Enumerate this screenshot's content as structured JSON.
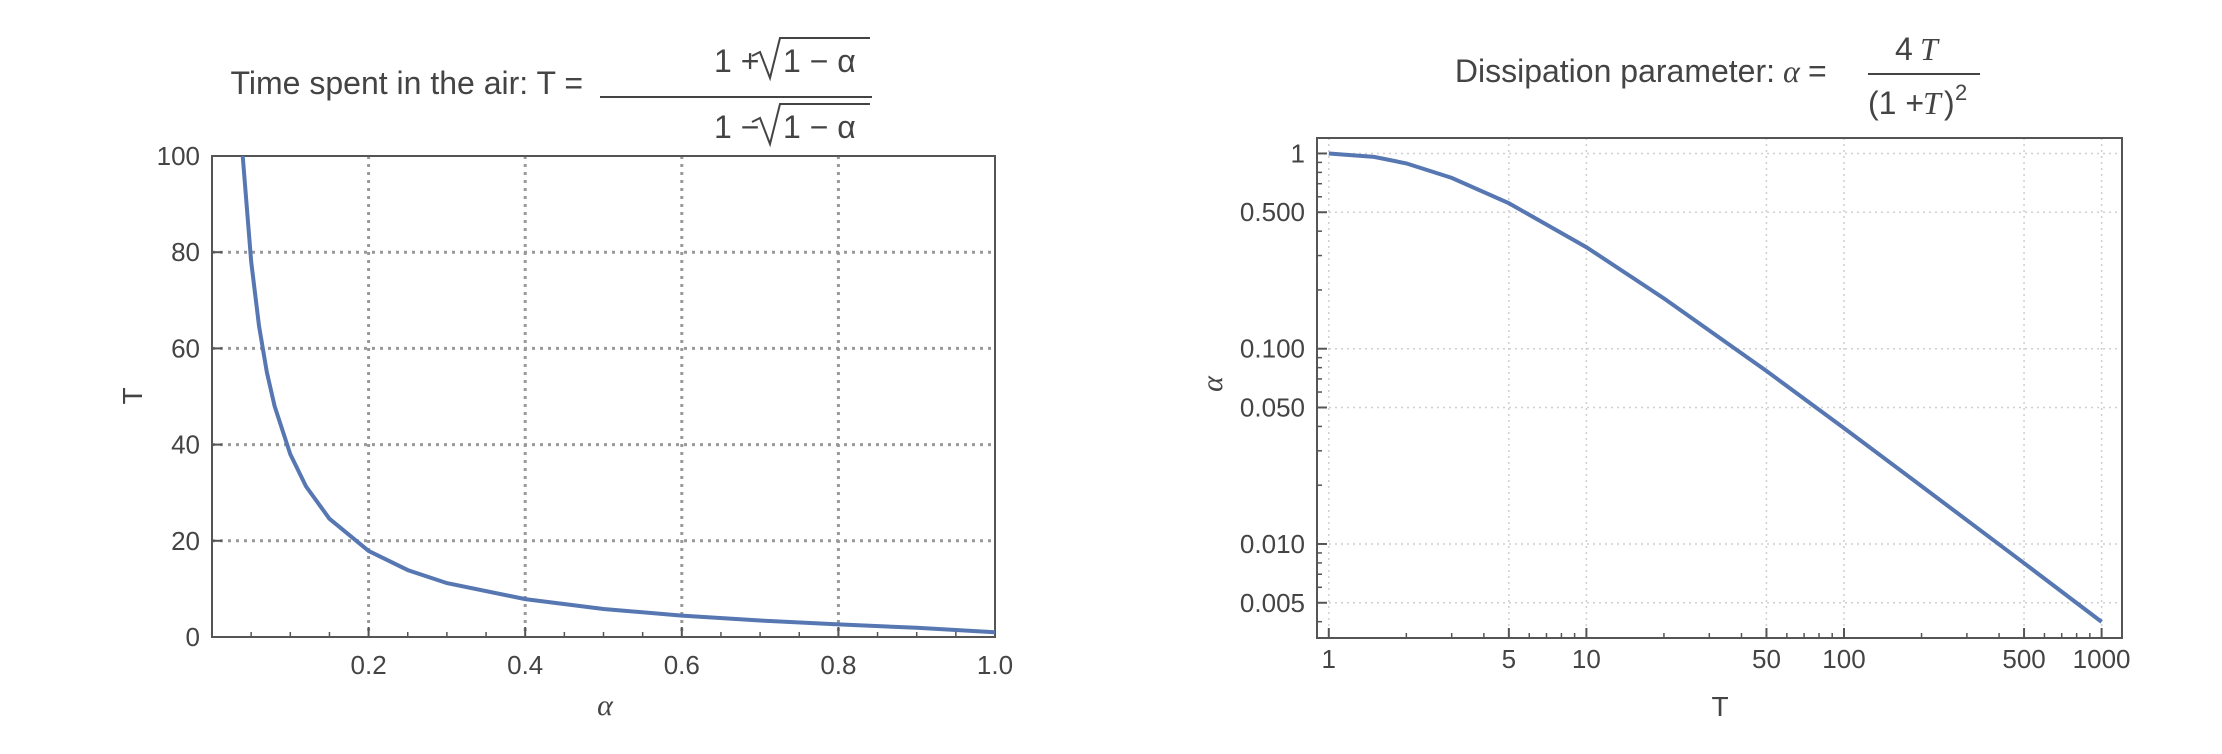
{
  "chart_data": [
    {
      "type": "line",
      "title_prefix": "Time spent in the air: T =",
      "title_numerator_prefix": "1 + ",
      "title_denominator_prefix": "1 − ",
      "title_radicand": "1 − α",
      "xlabel": "α",
      "ylabel": "T",
      "xlim": [
        0,
        1.0
      ],
      "ylim": [
        0,
        100
      ],
      "x_ticks": [
        0.2,
        0.4,
        0.6,
        0.8,
        1.0
      ],
      "x_tick_labels": [
        "0.2",
        "0.4",
        "0.6",
        "0.8",
        "1.0"
      ],
      "y_ticks": [
        0,
        20,
        40,
        60,
        80,
        100
      ],
      "y_tick_labels": [
        "0",
        "20",
        "40",
        "60",
        "80",
        "100"
      ],
      "grid": true,
      "series": [
        {
          "x": [
            0.0392,
            0.05,
            0.06,
            0.07,
            0.08,
            0.1,
            0.12,
            0.15,
            0.2,
            0.25,
            0.3,
            0.4,
            0.5,
            0.6,
            0.7,
            0.8,
            0.9,
            1.0
          ],
          "y": [
            100,
            78,
            64.7,
            55.1,
            48,
            38,
            31.3,
            24.6,
            17.9,
            13.9,
            11.2,
            7.87,
            5.83,
            4.44,
            3.42,
            2.62,
            1.92,
            1.0
          ]
        }
      ],
      "color": "#5677b1"
    },
    {
      "type": "line",
      "title_prefix": "Dissipation parameter:",
      "title_var": "α",
      "title_eq": "=",
      "title_numerator": "4",
      "title_numerator_var": "T",
      "title_denominator_left": "(1 + ",
      "title_denominator_var": "T",
      "title_denominator_right": ")",
      "title_exponent": "2",
      "xlabel": "T",
      "ylabel": "α",
      "xscale": "log",
      "yscale": "log",
      "xlim": [
        0.9,
        1200
      ],
      "ylim": [
        0.0033,
        1.2
      ],
      "x_ticks": [
        1,
        5,
        10,
        50,
        100,
        500,
        1000
      ],
      "x_tick_labels": [
        "1",
        "5",
        "10",
        "50",
        "100",
        "500",
        "1000"
      ],
      "y_ticks": [
        1,
        0.5,
        0.1,
        0.05,
        0.01,
        0.005
      ],
      "y_tick_labels": [
        "1",
        "0.500",
        "0.100",
        "0.050",
        "0.010",
        "0.005"
      ],
      "grid": true,
      "series": [
        {
          "x": [
            1,
            1.5,
            2,
            3,
            5,
            10,
            20,
            50,
            100,
            200,
            500,
            1000
          ],
          "y": [
            1,
            0.96,
            0.889,
            0.75,
            0.556,
            0.331,
            0.181,
            0.0769,
            0.0392,
            0.0198,
            0.00797,
            0.00399
          ]
        }
      ],
      "color": "#5677b1"
    }
  ]
}
